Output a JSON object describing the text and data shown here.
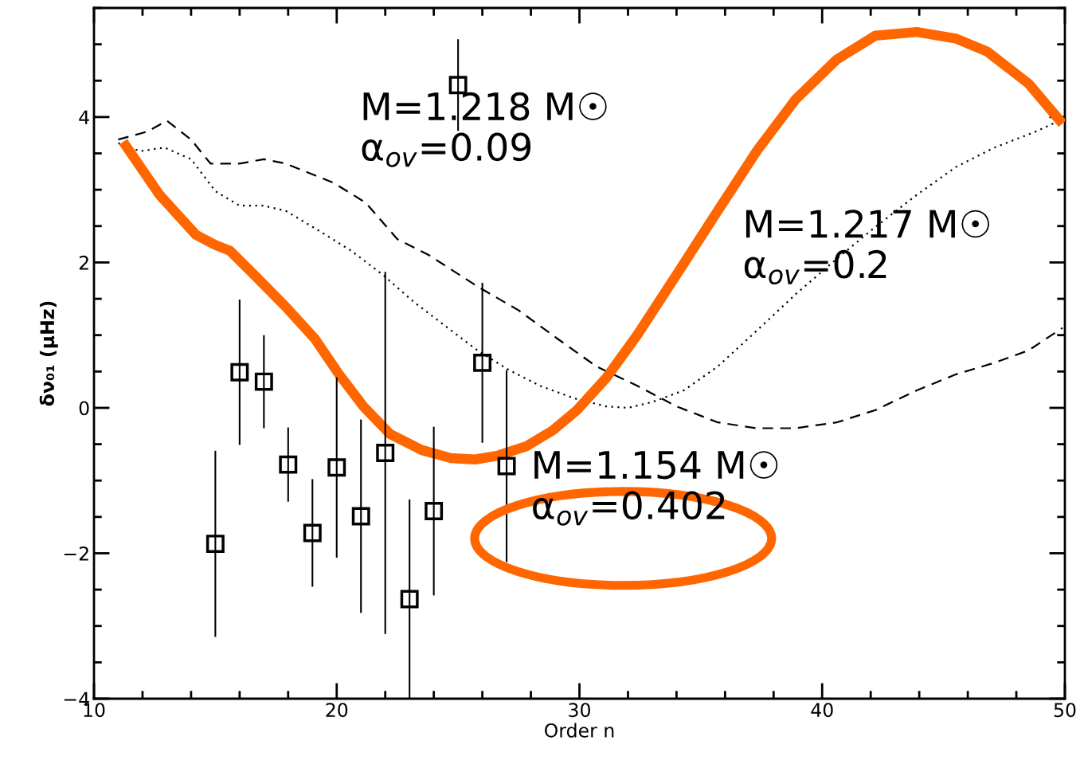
{
  "chart_data": {
    "type": "line",
    "xlabel": "Order n",
    "ylabel": "δν₀₁ (μHz)",
    "xlim": [
      10,
      50
    ],
    "ylim": [
      -4,
      5.5
    ],
    "xticks": [
      10,
      20,
      30,
      40,
      50
    ],
    "yticks": [
      -4,
      -2,
      0,
      2,
      4
    ],
    "grid": false,
    "legend": false,
    "series": [
      {
        "color": "#000000",
        "line_style": "dashed",
        "marker": "none",
        "x": [
          11.0,
          12.2,
          13.0,
          14.0,
          14.8,
          16.0,
          17.0,
          17.9,
          19.9,
          21.2,
          22.5,
          23.8,
          25.8,
          27.5,
          29.1,
          30.7,
          32.4,
          34.0,
          35.7,
          37.3,
          38.9,
          40.6,
          42.2,
          43.9,
          45.5,
          47.1,
          48.5,
          49.9
        ],
        "values": [
          3.69,
          3.8,
          3.95,
          3.69,
          3.36,
          3.36,
          3.42,
          3.36,
          3.09,
          2.82,
          2.32,
          2.1,
          1.67,
          1.34,
          0.95,
          0.57,
          0.3,
          0.02,
          -0.2,
          -0.28,
          -0.28,
          -0.2,
          -0.03,
          0.24,
          0.46,
          0.62,
          0.79,
          1.1
        ]
      },
      {
        "color": "#000000",
        "line_style": "dotted",
        "marker": "none",
        "x": [
          11.0,
          11.9,
          12.9,
          14.0,
          15.0,
          16.0,
          17.0,
          17.9,
          19.3,
          20.6,
          21.9,
          23.2,
          24.5,
          25.8,
          27.1,
          28.4,
          29.8,
          31.1,
          32.0,
          33.0,
          34.3,
          35.7,
          37.3,
          38.9,
          40.6,
          42.2,
          43.9,
          45.5,
          47.1,
          48.8,
          49.9
        ],
        "values": [
          3.64,
          3.53,
          3.58,
          3.42,
          2.98,
          2.78,
          2.78,
          2.71,
          2.43,
          2.16,
          1.83,
          1.45,
          1.12,
          0.79,
          0.52,
          0.3,
          0.13,
          0.02,
          0.0,
          0.08,
          0.24,
          0.57,
          1.06,
          1.56,
          2.05,
          2.49,
          2.93,
          3.31,
          3.58,
          3.8,
          3.97
        ]
      },
      {
        "color": "#ff6600",
        "line_style": "solid",
        "marker": "none",
        "x": [
          11.2,
          12.7,
          14.2,
          15.0,
          15.6,
          16.6,
          17.9,
          19.1,
          20.1,
          21.1,
          22.2,
          23.5,
          24.7,
          25.7,
          26.6,
          27.8,
          28.9,
          29.9,
          31.1,
          32.4,
          34.0,
          35.7,
          37.3,
          38.9,
          40.6,
          42.2,
          43.9,
          45.5,
          46.8,
          48.5,
          49.9
        ],
        "values": [
          3.66,
          2.93,
          2.38,
          2.24,
          2.16,
          1.83,
          1.39,
          0.95,
          0.46,
          0.02,
          -0.36,
          -0.58,
          -0.69,
          -0.71,
          -0.66,
          -0.53,
          -0.31,
          -0.03,
          0.41,
          1.01,
          1.83,
          2.71,
          3.53,
          4.24,
          4.79,
          5.12,
          5.17,
          5.08,
          4.9,
          4.46,
          3.91
        ]
      },
      {
        "type": "scatter",
        "color": "#000000",
        "marker": "square",
        "x": [
          15,
          16,
          17,
          18,
          19,
          20,
          21,
          22,
          23,
          24,
          25,
          26,
          27
        ],
        "values": [
          -1.87,
          0.49,
          0.36,
          -0.78,
          -1.72,
          -0.82,
          -1.49,
          -0.62,
          -2.63,
          -1.42,
          4.44,
          0.62,
          -0.8
        ],
        "errors": [
          1.28,
          1.0,
          0.64,
          0.51,
          0.74,
          1.24,
          1.33,
          2.49,
          1.37,
          1.16,
          0.63,
          1.1,
          1.32
        ]
      }
    ],
    "annotations": [
      "M=1.218 M☉\nα$_{ov}$=0.09",
      "M=1.217 M☉\nα$_{ov}$=0.2",
      "M=1.154 M☉\nα$_{ov}$=0.402"
    ]
  }
}
